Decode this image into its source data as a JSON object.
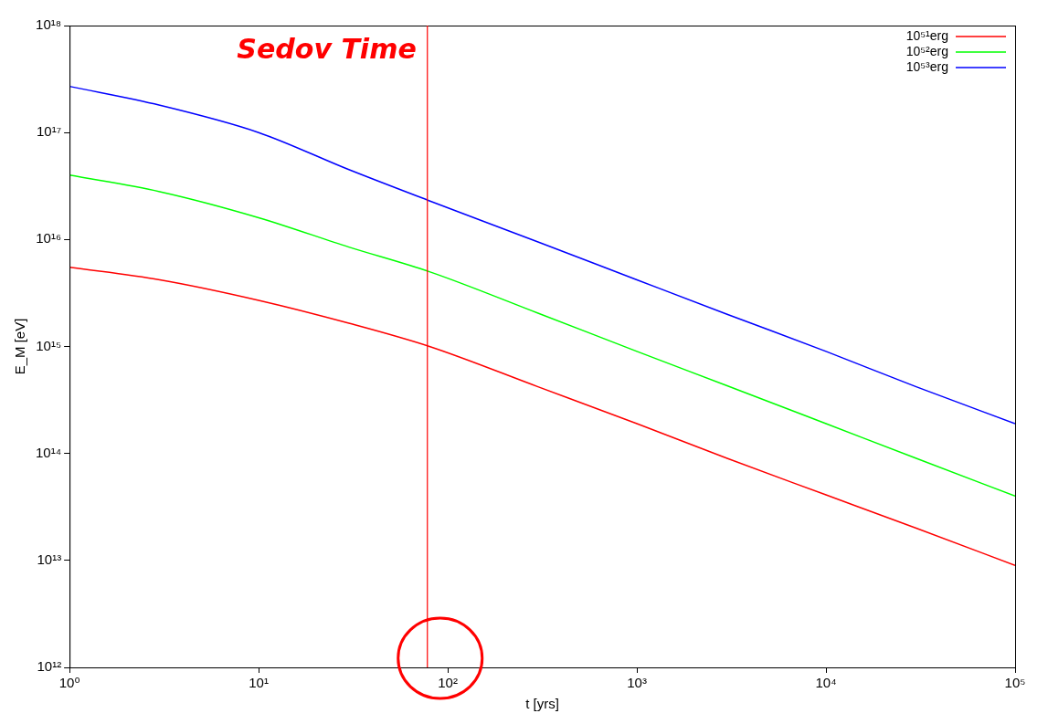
{
  "chart_data": {
    "type": "line",
    "x_label": "t [yrs]",
    "y_label": "E_M [eV]",
    "log": true,
    "grid": false,
    "legend": "upper right",
    "x": [
      1,
      3,
      10,
      30,
      80,
      300,
      1000,
      3000,
      10000,
      30000,
      100000
    ],
    "xlim": [
      1,
      100000
    ],
    "ylim": [
      1000000000000.0,
      1e+18
    ],
    "xticks": [
      {
        "value": 1,
        "label": "10⁰"
      },
      {
        "value": 10,
        "label": "10¹"
      },
      {
        "value": 100,
        "label": "10²"
      },
      {
        "value": 1000,
        "label": "10³"
      },
      {
        "value": 10000,
        "label": "10⁴"
      },
      {
        "value": 100000,
        "label": "10⁵"
      }
    ],
    "yticks": [
      {
        "value": 1000000000000.0,
        "label": "10¹²"
      },
      {
        "value": 10000000000000.0,
        "label": "10¹³"
      },
      {
        "value": 100000000000000.0,
        "label": "10¹⁴"
      },
      {
        "value": 1000000000000000.0,
        "label": "10¹⁵"
      },
      {
        "value": 1e+16,
        "label": "10¹⁶"
      },
      {
        "value": 1e+17,
        "label": "10¹⁷"
      },
      {
        "value": 1e+18,
        "label": "10¹⁸"
      }
    ],
    "series": [
      {
        "name": "10⁵¹erg",
        "color": "#ff0000",
        "values": [
          5500000000000000.0,
          4200000000000000.0,
          2700000000000000.0,
          1650000000000000.0,
          1000000000000000.0,
          420000000000000.0,
          190000000000000.0,
          90000000000000.0,
          41000000000000.0,
          20000000000000.0,
          9000000000000.0
        ]
      },
      {
        "name": "10⁵²erg",
        "color": "#00ff00",
        "values": [
          4e+16,
          2.8e+16,
          1.6e+16,
          8500000000000000.0,
          5000000000000000.0,
          2050000000000000.0,
          900000000000000.0,
          430000000000000.0,
          190000000000000.0,
          90000000000000.0,
          40000000000000.0
        ]
      },
      {
        "name": "10⁵³erg",
        "color": "#0000ff",
        "values": [
          2.7e+17,
          1.8e+17,
          1e+17,
          4.5e+16,
          2.3e+16,
          9500000000000000.0,
          4200000000000000.0,
          2000000000000000.0,
          900000000000000.0,
          420000000000000.0,
          190000000000000.0
        ]
      }
    ],
    "annotations": [
      {
        "text": "Sedov Time",
        "x": 78,
        "color": "#ff0000"
      }
    ]
  }
}
